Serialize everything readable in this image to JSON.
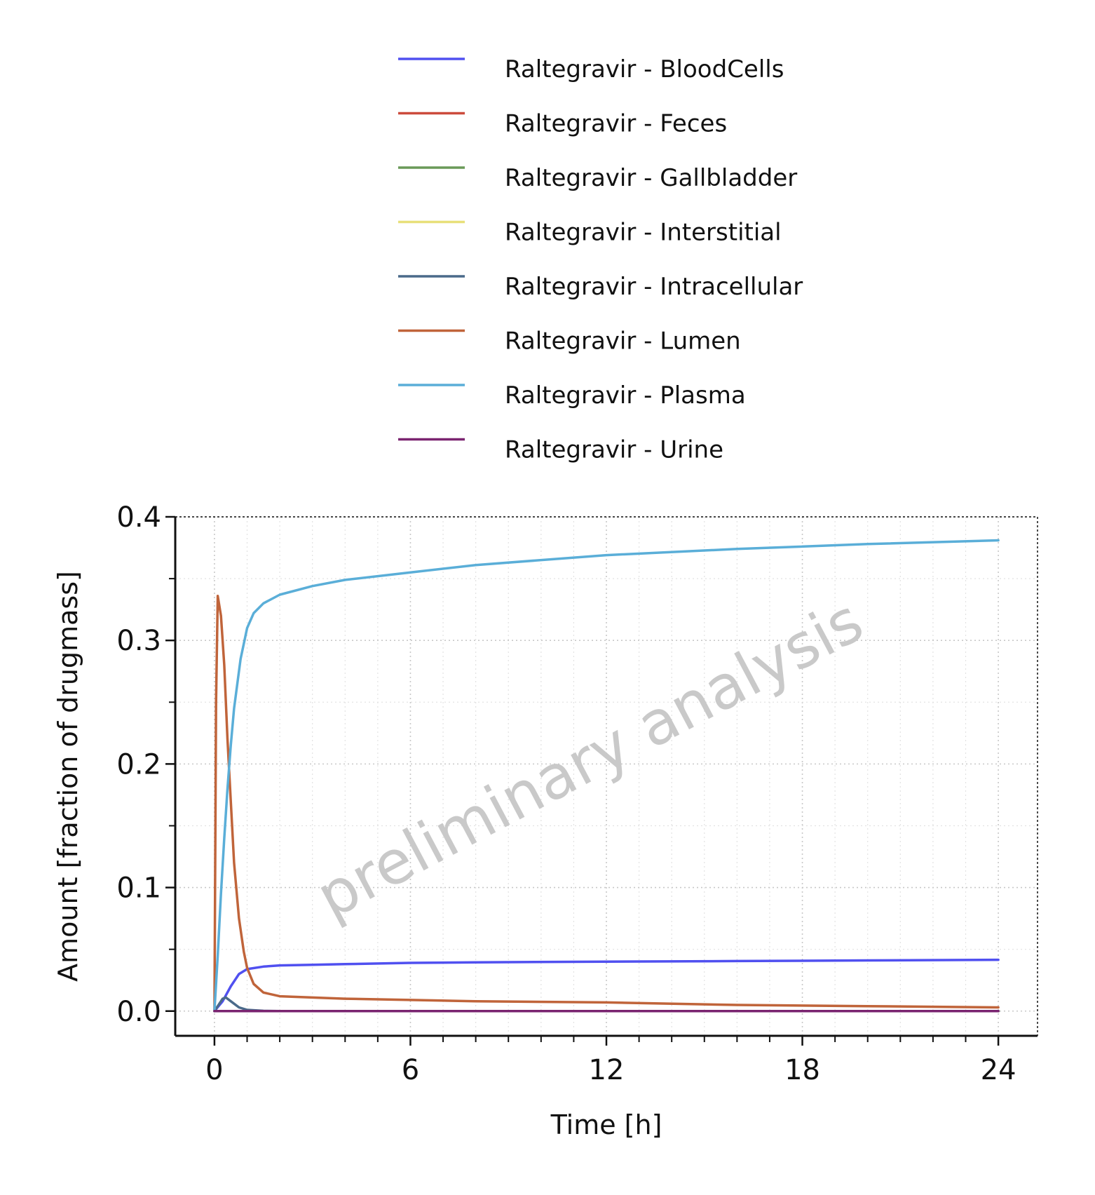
{
  "chart_data": {
    "type": "line",
    "title": "",
    "xlabel": "Time [h]",
    "ylabel": "Amount [fraction of drugmass]",
    "xlim": [
      -1.2,
      25.2
    ],
    "ylim": [
      -0.02,
      0.4
    ],
    "x_ticks": [
      0,
      6,
      12,
      18,
      24
    ],
    "x_tick_labels": [
      "0",
      "6",
      "12",
      "18",
      "24"
    ],
    "y_ticks": [
      0.0,
      0.1,
      0.2,
      0.3,
      0.4
    ],
    "y_tick_labels": [
      "0.0",
      "0.1",
      "0.2",
      "0.3",
      "0.4"
    ],
    "grid": true,
    "legend_position": "top",
    "watermark": "preliminary analysis",
    "series": [
      {
        "name": "Raltegravir - BloodCells",
        "color": "#5050f0",
        "x": [
          0,
          0.25,
          0.5,
          0.75,
          1.0,
          1.5,
          2,
          3,
          4,
          6,
          8,
          12,
          16,
          20,
          24
        ],
        "y": [
          0,
          0.008,
          0.02,
          0.03,
          0.034,
          0.036,
          0.037,
          0.0375,
          0.038,
          0.039,
          0.0395,
          0.04,
          0.0405,
          0.041,
          0.0415
        ]
      },
      {
        "name": "Raltegravir - Feces",
        "color": "#cc4b3c",
        "x": [
          0,
          6,
          12,
          18,
          24
        ],
        "y": [
          0,
          0,
          0,
          0,
          0
        ]
      },
      {
        "name": "Raltegravir - Gallbladder",
        "color": "#6a9a58",
        "x": [
          0,
          6,
          12,
          18,
          24
        ],
        "y": [
          0,
          0,
          0,
          0,
          0
        ]
      },
      {
        "name": "Raltegravir - Interstitial",
        "color": "#e8e07a",
        "x": [
          0,
          6,
          12,
          18,
          24
        ],
        "y": [
          0,
          0,
          0,
          0,
          0
        ]
      },
      {
        "name": "Raltegravir - Intracellular",
        "color": "#4a6a8a",
        "x": [
          0,
          0.1,
          0.25,
          0.35,
          0.5,
          0.75,
          1.0,
          1.5,
          2,
          24
        ],
        "y": [
          0,
          0.004,
          0.01,
          0.011,
          0.008,
          0.003,
          0.001,
          0.0002,
          0,
          0
        ]
      },
      {
        "name": "Raltegravir - Lumen",
        "color": "#c0643a",
        "x": [
          0,
          0.05,
          0.1,
          0.2,
          0.3,
          0.4,
          0.5,
          0.6,
          0.75,
          0.9,
          1.0,
          1.2,
          1.5,
          2,
          3,
          4,
          6,
          8,
          12,
          16,
          20,
          24
        ],
        "y": [
          0,
          0.25,
          0.336,
          0.32,
          0.28,
          0.22,
          0.17,
          0.12,
          0.075,
          0.048,
          0.035,
          0.022,
          0.015,
          0.012,
          0.011,
          0.01,
          0.009,
          0.008,
          0.007,
          0.005,
          0.004,
          0.003
        ]
      },
      {
        "name": "Raltegravir - Plasma",
        "color": "#5aaed8",
        "x": [
          0,
          0.1,
          0.2,
          0.3,
          0.4,
          0.5,
          0.6,
          0.8,
          1.0,
          1.2,
          1.5,
          2,
          3,
          4,
          6,
          8,
          12,
          16,
          20,
          24
        ],
        "y": [
          0,
          0.045,
          0.095,
          0.14,
          0.18,
          0.215,
          0.245,
          0.285,
          0.31,
          0.322,
          0.33,
          0.337,
          0.344,
          0.349,
          0.355,
          0.361,
          0.369,
          0.374,
          0.378,
          0.381
        ]
      },
      {
        "name": "Raltegravir - Urine",
        "color": "#7a2470",
        "x": [
          0,
          6,
          12,
          18,
          24
        ],
        "y": [
          0,
          0,
          0,
          0,
          0
        ]
      }
    ]
  }
}
